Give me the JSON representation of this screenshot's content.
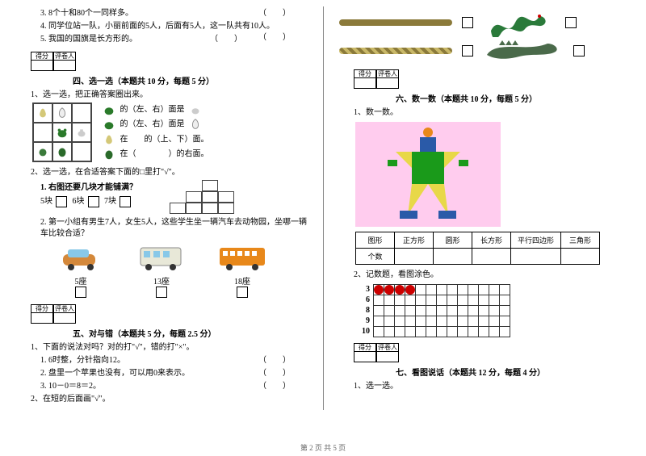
{
  "top_questions": [
    "3. 8个十和80个一同样多。",
    "4. 同学位站一队，小丽前面的5人，后面有5人，这一队共有10人。",
    "5. 我国的国旗是长方形的。"
  ],
  "bracket": "（　　）",
  "score_labels": {
    "score": "得分",
    "grader": "评卷人"
  },
  "section4": {
    "title": "四、选一选（本题共 10 分，每题 5 分）",
    "q1": "1、选一选，把正确答案圈出来。",
    "lines": [
      "的（左、右）面是",
      "的（左、右）面是",
      "在　　的（上、下）面。",
      "在（　　　　）的右面。"
    ],
    "q2": "2、选一选，在合适答案下面的□里打\"√\"。",
    "puzzle_q": "1. 右图还要几块才能铺满？",
    "puzzle_opts": [
      "5块",
      "6块",
      "7块"
    ],
    "car_q": "2. 第一小组有男生7人，女生5人，这些学生坐一辆汽车去动物园，坐哪一辆车比较合适？",
    "cars": [
      "5座",
      "13座",
      "18座"
    ]
  },
  "section5": {
    "title": "五、对与错（本题共 5 分，每题 2.5 分）",
    "q1": "1、下面的说法对吗？对的打\"√\"，错的打\"×\"。",
    "items": [
      "1. 6时整，分针指向12。",
      "2. 盘里一个苹果也没有，可以用0来表示。",
      "3. 10－0＝8＝2。"
    ],
    "q2": "2、在短的后面画\"√\"。"
  },
  "section6": {
    "title": "六、数一数（本题共 10 分，每题 5 分）",
    "q1": "1、数一数。",
    "shapes": [
      "图形",
      "正方形",
      "圆形",
      "长方形",
      "平行四边形",
      "三角形"
    ],
    "count_label": "个数",
    "q2": "2、记数题，看图涂色。",
    "rows": [
      3,
      6,
      8,
      9,
      10
    ],
    "filled_row": 3,
    "filled_count": 4,
    "cols": 13
  },
  "section7": {
    "title": "七、看图说话（本题共 12 分，每题 4 分）",
    "q1": "1、选一选。"
  },
  "footer": "第 2 页 共 5 页",
  "colors": {
    "rope1": "#8b7a3a",
    "rope2": "#c9b868",
    "snake": "#2a7a3a",
    "croc": "#4a6a4a",
    "robot_bg": "#fcd8f0",
    "robot_green": "#1a9a1a",
    "robot_blue": "#2a5aa8",
    "robot_yellow": "#e8d848",
    "robot_orange": "#e8881a",
    "dot_red": "#c81818"
  }
}
